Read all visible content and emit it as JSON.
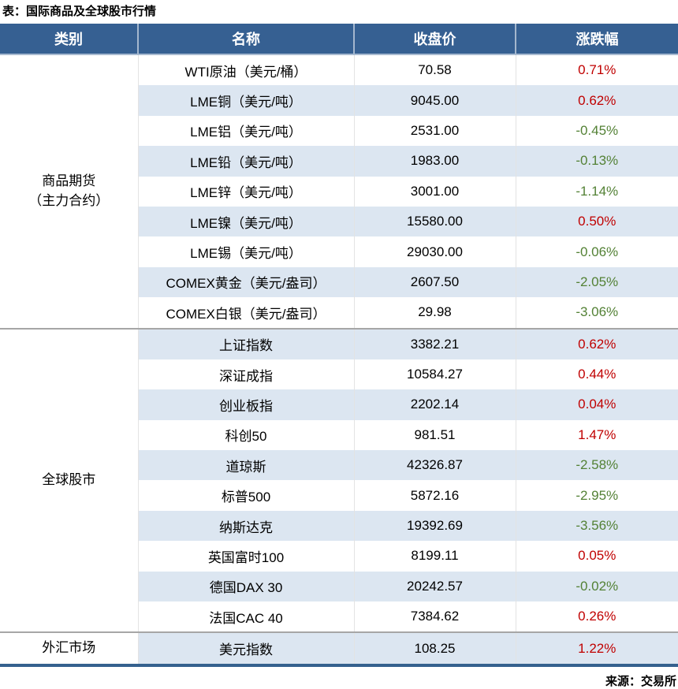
{
  "page": {
    "title": "表：国际商品及全球股市行情",
    "source": "来源：交易所"
  },
  "chart_data": {
    "type": "table",
    "title": "表：国际商品及全球股市行情",
    "columns": [
      "类别",
      "名称",
      "收盘价",
      "涨跌幅"
    ],
    "sections": [
      {
        "category": "商品期货\n（主力合约）",
        "rows": [
          [
            "WTI原油（美元/桶）",
            "70.58",
            "0.71%"
          ],
          [
            "LME铜（美元/吨）",
            "9045.00",
            "0.62%"
          ],
          [
            "LME铝（美元/吨）",
            "2531.00",
            "-0.45%"
          ],
          [
            "LME铅（美元/吨）",
            "1983.00",
            "-0.13%"
          ],
          [
            "LME锌（美元/吨）",
            "3001.00",
            "-1.14%"
          ],
          [
            "LME镍（美元/吨）",
            "15580.00",
            "0.50%"
          ],
          [
            "LME锡（美元/吨）",
            "29030.00",
            "-0.06%"
          ],
          [
            "COMEX黄金（美元/盎司）",
            "2607.50",
            "-2.05%"
          ],
          [
            "COMEX白银（美元/盎司）",
            "29.98",
            "-3.06%"
          ]
        ]
      },
      {
        "category": "全球股市",
        "rows": [
          [
            "上证指数",
            "3382.21",
            "0.62%"
          ],
          [
            "深证成指",
            "10584.27",
            "0.44%"
          ],
          [
            "创业板指",
            "2202.14",
            "0.04%"
          ],
          [
            "科创50",
            "981.51",
            "1.47%"
          ],
          [
            "道琼斯",
            "42326.87",
            "-2.58%"
          ],
          [
            "标普500",
            "5872.16",
            "-2.95%"
          ],
          [
            "纳斯达克",
            "19392.69",
            "-3.56%"
          ],
          [
            "英国富时100",
            "8199.11",
            "0.05%"
          ],
          [
            "德国DAX 30",
            "20242.57",
            "-0.02%"
          ],
          [
            "法国CAC 40",
            "7384.62",
            "0.26%"
          ]
        ]
      },
      {
        "category": "外汇市场",
        "rows": [
          [
            "美元指数",
            "108.25",
            "1.22%"
          ]
        ]
      }
    ],
    "legend_convention": "红色=涨（正值），绿色=跌（负值）"
  },
  "colors": {
    "header_bg": "#366092",
    "header_text": "#FFFFFF",
    "row_band": "#DCE6F1",
    "up_red": "#C00000",
    "down_green": "#538135",
    "section_divider": "#A6A6A6",
    "bottom_border": "#35618E"
  }
}
